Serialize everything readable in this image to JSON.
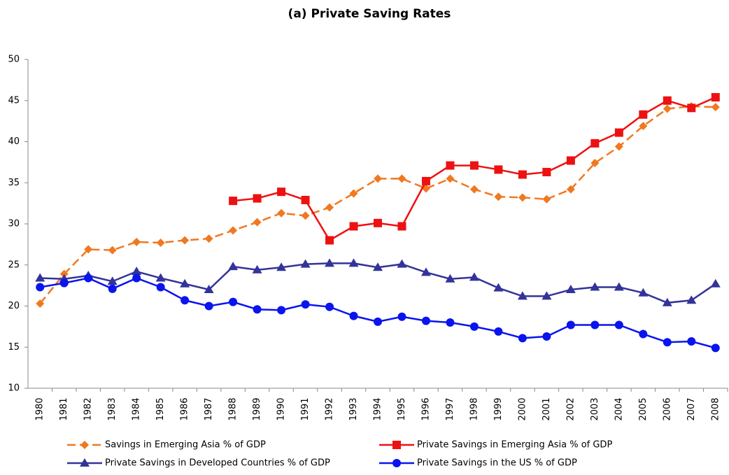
{
  "chart_data": {
    "type": "line",
    "title": "(a) Private Saving Rates",
    "categories": [
      "1980",
      "1981",
      "1982",
      "1983",
      "1984",
      "1985",
      "1986",
      "1987",
      "1988",
      "1989",
      "1990",
      "1991",
      "1992",
      "1993",
      "1994",
      "1995",
      "1996",
      "1997",
      "1998",
      "1999",
      "2000",
      "2001",
      "2002",
      "2003",
      "2004",
      "2005",
      "2006",
      "2007",
      "2008"
    ],
    "series": [
      {
        "name": "Savings in Emerging Asia % of GDP",
        "color": "#f07820",
        "marker": "diamond",
        "dashed": true,
        "values": [
          20.3,
          23.9,
          26.9,
          26.8,
          27.8,
          27.7,
          28.0,
          28.2,
          29.2,
          30.2,
          31.3,
          31.0,
          32.0,
          33.7,
          35.5,
          35.5,
          34.3,
          35.5,
          34.2,
          33.3,
          33.2,
          33.0,
          34.2,
          37.4,
          39.4,
          41.9,
          44.0,
          44.3,
          44.2
        ]
      },
      {
        "name": "Private Savings in Emerging Asia % of GDP",
        "color": "#ee1111",
        "marker": "square",
        "dashed": false,
        "values": [
          null,
          null,
          null,
          null,
          null,
          null,
          null,
          null,
          32.8,
          33.1,
          33.9,
          32.9,
          28.0,
          29.7,
          30.1,
          29.7,
          35.2,
          37.1,
          37.1,
          36.6,
          36.0,
          36.3,
          37.7,
          39.8,
          41.1,
          43.3,
          45.0,
          44.1,
          45.4
        ]
      },
      {
        "name": "Private Savings in Developed Countries % of GDP",
        "color": "#33339a",
        "marker": "triangle",
        "dashed": false,
        "values": [
          23.4,
          23.3,
          23.7,
          23.0,
          24.2,
          23.4,
          22.7,
          22.0,
          24.8,
          24.4,
          24.7,
          25.1,
          25.2,
          25.2,
          24.7,
          25.1,
          24.1,
          23.3,
          23.5,
          22.2,
          21.2,
          21.2,
          22.0,
          22.3,
          22.3,
          21.6,
          20.4,
          20.7,
          22.7
        ]
      },
      {
        "name": "Private Savings in the US % of GDP",
        "color": "#0a14ee",
        "marker": "circle",
        "dashed": false,
        "values": [
          22.3,
          22.8,
          23.4,
          22.1,
          23.4,
          22.3,
          20.7,
          20.0,
          20.5,
          19.6,
          19.5,
          20.2,
          19.9,
          18.8,
          18.1,
          18.7,
          18.2,
          18.0,
          17.5,
          16.9,
          16.1,
          16.3,
          17.7,
          17.7,
          17.7,
          16.6,
          15.6,
          15.7,
          14.9
        ]
      }
    ],
    "ylim": [
      10,
      50
    ],
    "yticks": [
      10,
      15,
      20,
      25,
      30,
      35,
      40,
      45,
      50
    ],
    "grid": false
  }
}
